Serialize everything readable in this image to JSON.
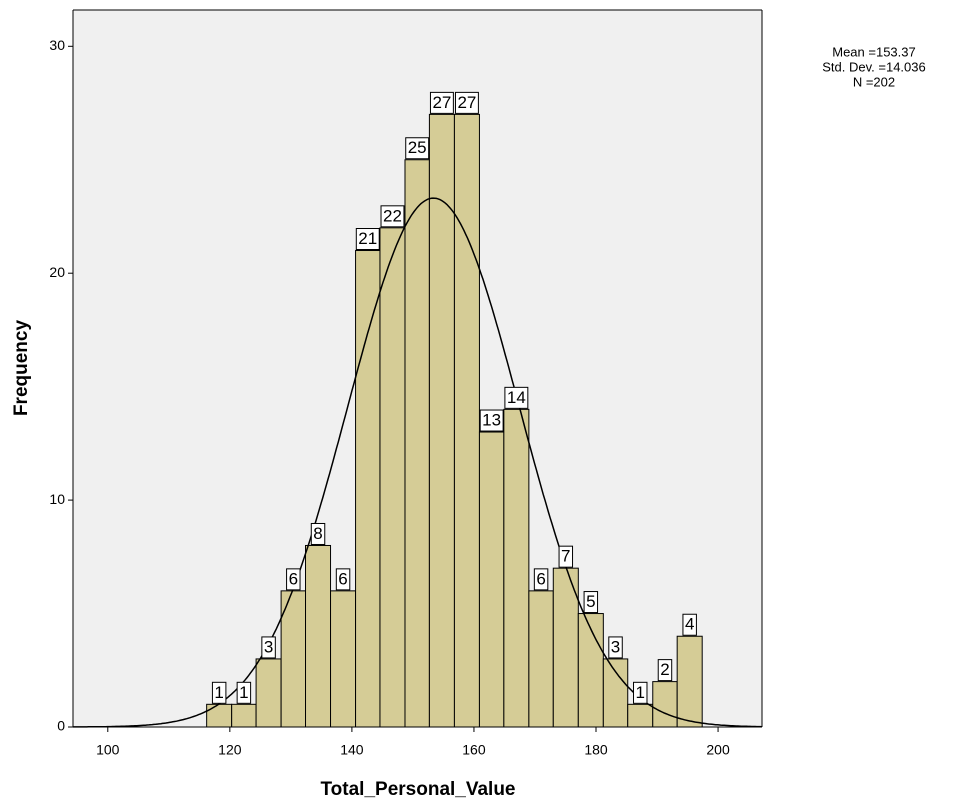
{
  "chart_data": {
    "type": "histogram",
    "xlabel": "Total_Personal_Value",
    "ylabel": "Frequency",
    "bins": [
      116.2,
      120.3,
      124.3,
      128.4,
      132.4,
      136.5,
      140.6,
      144.6,
      148.7,
      152.7,
      156.8,
      160.9,
      164.9,
      169.0,
      173.0,
      177.1,
      181.2,
      185.2,
      189.3,
      193.3,
      197.4
    ],
    "values": [
      1,
      1,
      3,
      6,
      8,
      6,
      21,
      22,
      25,
      27,
      27,
      13,
      14,
      6,
      7,
      5,
      3,
      1,
      2,
      4
    ],
    "color": "#d5cc96",
    "xlim": [
      94.3,
      207.2
    ],
    "xticks": [
      100,
      120,
      140,
      160,
      180,
      200
    ],
    "ylim": [
      0,
      31.6
    ],
    "yticks": [
      0,
      10,
      20,
      30
    ],
    "stats": [
      {
        "value": 153.37,
        "label": "Mean =153.37"
      },
      {
        "value": 14.036,
        "label": "Std. Dev. =14.036"
      },
      {
        "value": 202,
        "label": "N =202"
      }
    ],
    "normal_curve": true
  }
}
